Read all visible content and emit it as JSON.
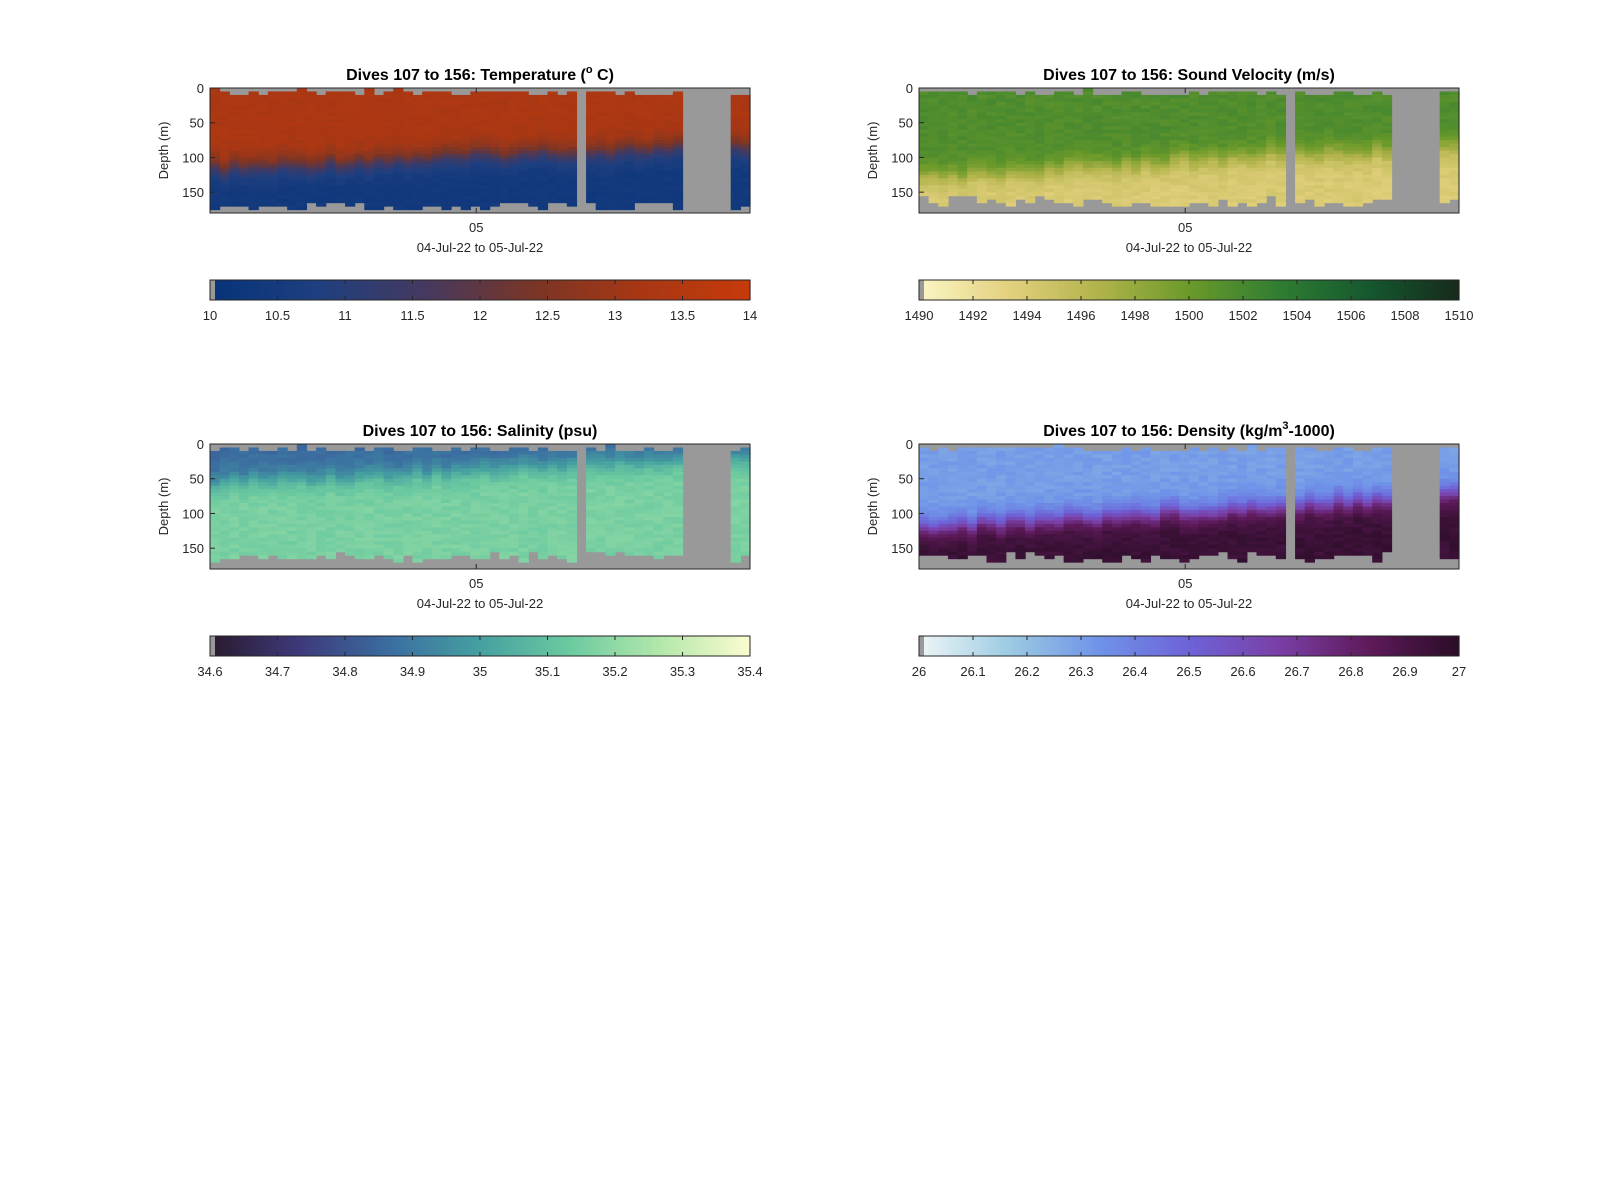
{
  "chart_data": [
    {
      "type": "heatmap",
      "title": "Dives 107 to 156: Temperature (",
      "title_sup": "o",
      "title_end": " C)",
      "ylabel": "Depth (m)",
      "xtick": "05",
      "xlabel": "04-Jul-22 to 05-Jul-22",
      "yticks": [
        0,
        50,
        100,
        150
      ],
      "ylim": [
        0,
        180
      ],
      "colorbar_ticks": [
        "10",
        "10.5",
        "11",
        "11.5",
        "12",
        "12.5",
        "13",
        "13.5",
        "14"
      ],
      "clim": [
        10,
        14
      ],
      "colormap": [
        "#06337a",
        "#1e3f7f",
        "#45395f",
        "#7a3526",
        "#a83714",
        "#c63a0a"
      ],
      "nodata_color": "#999999",
      "surface_value": 13.3,
      "deep_value": 10.4,
      "transition_depth": [
        118,
        104,
        92,
        84
      ],
      "bottom_depth": 177,
      "gap_fractions": [
        [
          0.677,
          0.698
        ],
        [
          0.882,
          0.962
        ]
      ]
    },
    {
      "type": "heatmap",
      "title": "Dives 107 to 156: Sound Velocity (m/s)",
      "ylabel": "Depth (m)",
      "xtick": "05",
      "xlabel": "04-Jul-22 to 05-Jul-22",
      "yticks": [
        0,
        50,
        100,
        150
      ],
      "ylim": [
        0,
        180
      ],
      "colorbar_ticks": [
        "1490",
        "1492",
        "1494",
        "1496",
        "1498",
        "1500",
        "1502",
        "1504",
        "1506",
        "1508",
        "1510"
      ],
      "clim": [
        1490,
        1510
      ],
      "colormap": [
        "#fbf6c4",
        "#e3d07e",
        "#b1b34a",
        "#6b9a2a",
        "#2f7d32",
        "#15582e",
        "#162a1b"
      ],
      "nodata_color": "#999999",
      "surface_value": 1501.5,
      "deep_value": 1494.0,
      "transition_depth": [
        130,
        112,
        95,
        88
      ],
      "bottom_depth": 170,
      "gap_fractions": [
        [
          0.677,
          0.698
        ],
        [
          0.882,
          0.962
        ]
      ]
    },
    {
      "type": "heatmap",
      "title": "Dives 107 to 156: Salinity (psu)",
      "ylabel": "Depth (m)",
      "xtick": "05",
      "xlabel": "04-Jul-22 to 05-Jul-22",
      "yticks": [
        0,
        50,
        100,
        150
      ],
      "ylim": [
        0,
        180
      ],
      "colorbar_ticks": [
        "34.6",
        "34.7",
        "34.8",
        "34.9",
        "35",
        "35.1",
        "35.2",
        "35.3",
        "35.4"
      ],
      "clim": [
        34.6,
        35.4
      ],
      "colormap": [
        "#2a1a2e",
        "#3d3a7a",
        "#3b6ea1",
        "#45a0a0",
        "#6ccaa0",
        "#b3e7aa",
        "#fbfbd0"
      ],
      "nodata_color": "#999999",
      "surface_value": 34.86,
      "deep_value": 35.16,
      "transition_depth": [
        55,
        45,
        30,
        20
      ],
      "bottom_depth": 170,
      "gap_fractions": [
        [
          0.677,
          0.698
        ],
        [
          0.882,
          0.962
        ]
      ]
    },
    {
      "type": "heatmap",
      "title": "Dives 107 to 156: Density (kg/m",
      "title_sup": "3",
      "title_end": "-1000)",
      "ylabel": "Depth (m)",
      "xtick": "05",
      "xlabel": "04-Jul-22 to 05-Jul-22",
      "yticks": [
        0,
        50,
        100,
        150
      ],
      "ylim": [
        0,
        180
      ],
      "colorbar_ticks": [
        "26",
        "26.1",
        "26.2",
        "26.3",
        "26.4",
        "26.5",
        "26.6",
        "26.7",
        "26.8",
        "26.9",
        "27"
      ],
      "clim": [
        26,
        27
      ],
      "colormap": [
        "#eef6f6",
        "#9ccbe2",
        "#6f93e8",
        "#6d63d8",
        "#7a3fa6",
        "#5e1a5a",
        "#2a0d26"
      ],
      "nodata_color": "#999999",
      "surface_value": 26.3,
      "deep_value": 26.95,
      "transition_depth": [
        120,
        105,
        90,
        70
      ],
      "bottom_depth": 170,
      "gap_fractions": [
        [
          0.677,
          0.698
        ],
        [
          0.882,
          0.962
        ]
      ]
    }
  ]
}
